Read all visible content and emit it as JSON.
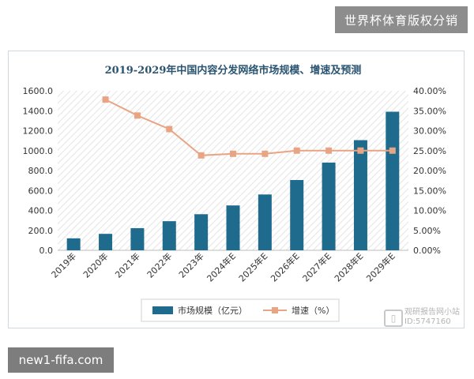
{
  "banners": {
    "top": "世界杯体育版权分销",
    "bottom": "new1-fifa.com"
  },
  "watermark": {
    "line1": "观研报告网小站",
    "line2": "ID:5747160"
  },
  "colors": {
    "bar": "#1f6b8e",
    "line": "#e9a583",
    "marker": "#e9a583",
    "title": "#2a5470",
    "axis": "#333333"
  },
  "chart_data": {
    "type": "bar",
    "title": "2019-2029年中国内容分发网络市场规模、增速及预测",
    "categories": [
      "2019年",
      "2020年",
      "2021年",
      "2022年",
      "2023年",
      "2024年E",
      "2025年E",
      "2026年E",
      "2027年E",
      "2028年E",
      "2029年E"
    ],
    "ylim": [
      0,
      1600
    ],
    "y_ticks": [
      "0.0",
      "200.0",
      "400.0",
      "600.0",
      "800.0",
      "1000.0",
      "1200.0",
      "1400.0",
      "1600.0"
    ],
    "y2lim": [
      0,
      40
    ],
    "y2_ticks": [
      "0.00%",
      "5.00%",
      "10.00%",
      "15.00%",
      "20.00%",
      "25.00%",
      "30.00%",
      "35.00%",
      "40.00%"
    ],
    "series": [
      {
        "name": "市场规模（亿元）",
        "kind": "bar",
        "axis": "left",
        "values": [
          120,
          165,
          222,
          292,
          362,
          450,
          560,
          705,
          880,
          1105,
          1390
        ]
      },
      {
        "name": "增速（%）",
        "kind": "line",
        "axis": "right",
        "values": [
          null,
          37.8,
          33.8,
          30.4,
          23.8,
          24.2,
          24.2,
          25.0,
          25.0,
          25.0,
          25.0
        ]
      }
    ],
    "legend": "bottom",
    "grid": false
  }
}
